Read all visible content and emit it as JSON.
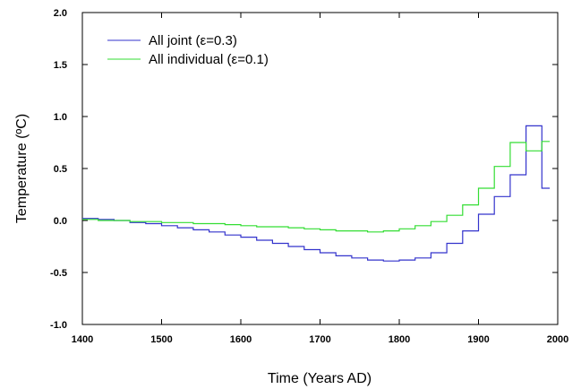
{
  "chart_data": {
    "type": "line",
    "step": true,
    "xlabel": "Time (Years AD)",
    "ylabel": "Temperature (ºC)",
    "xlim": [
      1400,
      2000
    ],
    "ylim": [
      -1.0,
      2.0
    ],
    "xticks": [
      1400,
      1500,
      1600,
      1700,
      1800,
      1900,
      2000
    ],
    "yticks": [
      -1.0,
      -0.5,
      0.0,
      0.5,
      1.0,
      1.5,
      2.0
    ],
    "xtick_labels": [
      "1400",
      "1500",
      "1600",
      "1700",
      "1800",
      "1900",
      "2000"
    ],
    "ytick_labels": [
      "-1.0",
      "-0.5",
      "0.0",
      "0.5",
      "1.0",
      "1.5",
      "2.0"
    ],
    "legend_position": "top-left",
    "series": [
      {
        "name": "All joint (ε=0.3)",
        "color": "#3333cc",
        "x": [
          1400,
          1420,
          1440,
          1460,
          1480,
          1500,
          1520,
          1540,
          1560,
          1580,
          1600,
          1620,
          1640,
          1660,
          1680,
          1700,
          1720,
          1740,
          1760,
          1780,
          1800,
          1820,
          1840,
          1860,
          1880,
          1900,
          1920,
          1940,
          1960,
          1980,
          1990
        ],
        "y": [
          0.02,
          0.01,
          0.0,
          -0.02,
          -0.03,
          -0.05,
          -0.07,
          -0.09,
          -0.11,
          -0.14,
          -0.16,
          -0.19,
          -0.22,
          -0.25,
          -0.28,
          -0.31,
          -0.34,
          -0.36,
          -0.38,
          -0.39,
          -0.38,
          -0.36,
          -0.31,
          -0.22,
          -0.1,
          0.06,
          0.23,
          0.44,
          0.91,
          0.31,
          0.31
        ]
      },
      {
        "name": "All individual (ε=0.1)",
        "color": "#33dd33",
        "x": [
          1400,
          1420,
          1440,
          1460,
          1480,
          1500,
          1520,
          1540,
          1560,
          1580,
          1600,
          1620,
          1640,
          1660,
          1680,
          1700,
          1720,
          1740,
          1760,
          1780,
          1800,
          1820,
          1840,
          1860,
          1880,
          1900,
          1920,
          1940,
          1960,
          1980,
          1990
        ],
        "y": [
          0.01,
          0.0,
          0.0,
          -0.01,
          -0.01,
          -0.02,
          -0.02,
          -0.03,
          -0.03,
          -0.04,
          -0.05,
          -0.06,
          -0.06,
          -0.07,
          -0.08,
          -0.09,
          -0.1,
          -0.1,
          -0.11,
          -0.1,
          -0.08,
          -0.05,
          -0.01,
          0.05,
          0.15,
          0.31,
          0.52,
          0.75,
          0.67,
          0.76,
          0.76
        ]
      }
    ]
  }
}
